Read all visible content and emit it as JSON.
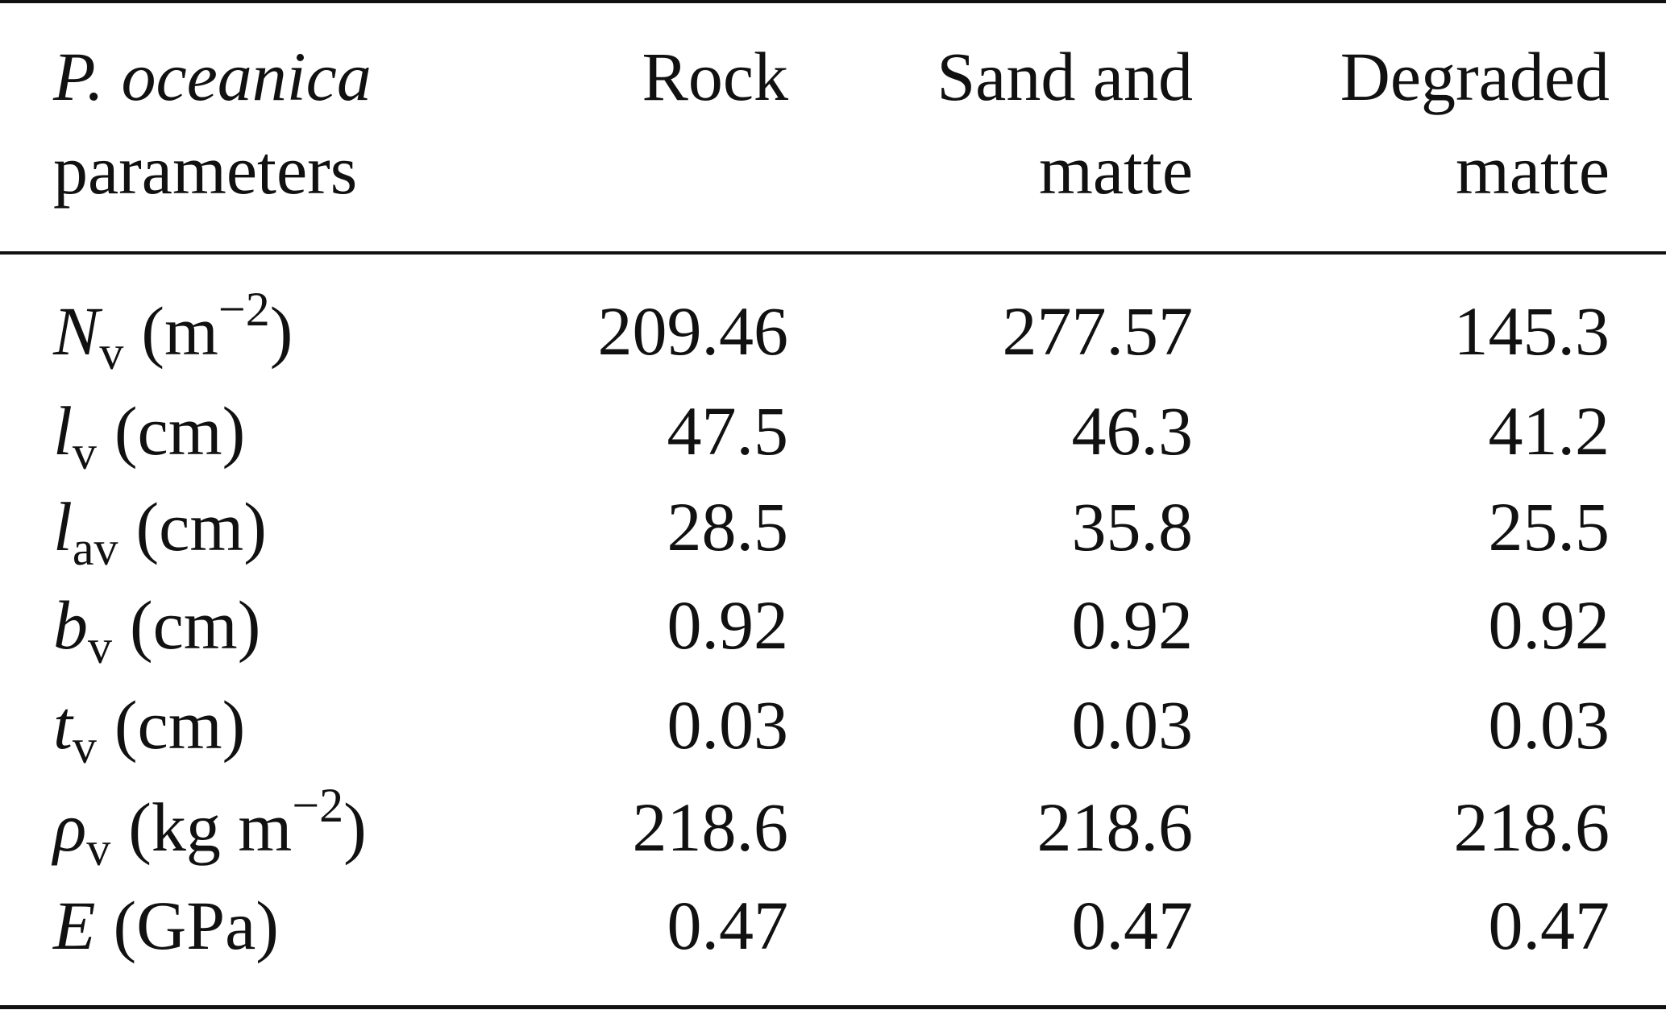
{
  "header": {
    "param_line1": "P. oceanica",
    "param_line2": "parameters",
    "rock": "Rock",
    "sand_line1": "Sand and",
    "sand_line2": "matte",
    "degraded_line1": "Degraded",
    "degraded_line2": "matte"
  },
  "rows": [
    {
      "symbol": "N",
      "sub": "v",
      "unit_open": "(m",
      "unit_sup": "−2",
      "unit_close": ")",
      "rock": "209.46",
      "sand": "277.57",
      "degraded": "145.3"
    },
    {
      "symbol": "l",
      "sub": "v",
      "unit_open": "(cm)",
      "unit_sup": "",
      "unit_close": "",
      "rock": "47.5",
      "sand": "46.3",
      "degraded": "41.2"
    },
    {
      "symbol": "l",
      "sub": "av",
      "unit_open": "(cm)",
      "unit_sup": "",
      "unit_close": "",
      "rock": "28.5",
      "sand": "35.8",
      "degraded": "25.5"
    },
    {
      "symbol": "b",
      "sub": "v",
      "unit_open": "(cm)",
      "unit_sup": "",
      "unit_close": "",
      "rock": "0.92",
      "sand": "0.92",
      "degraded": "0.92"
    },
    {
      "symbol": "t",
      "sub": "v",
      "unit_open": "(cm)",
      "unit_sup": "",
      "unit_close": "",
      "rock": "0.03",
      "sand": "0.03",
      "degraded": "0.03"
    },
    {
      "symbol": "ρ",
      "sub": "v",
      "unit_open": "(kg m",
      "unit_sup": "−2",
      "unit_close": ")",
      "rock": "218.6",
      "sand": "218.6",
      "degraded": "218.6"
    },
    {
      "symbol": "E",
      "sub": "",
      "unit_open": "(GPa)",
      "unit_sup": "",
      "unit_close": "",
      "rock": "0.47",
      "sand": "0.47",
      "degraded": "0.47"
    }
  ]
}
